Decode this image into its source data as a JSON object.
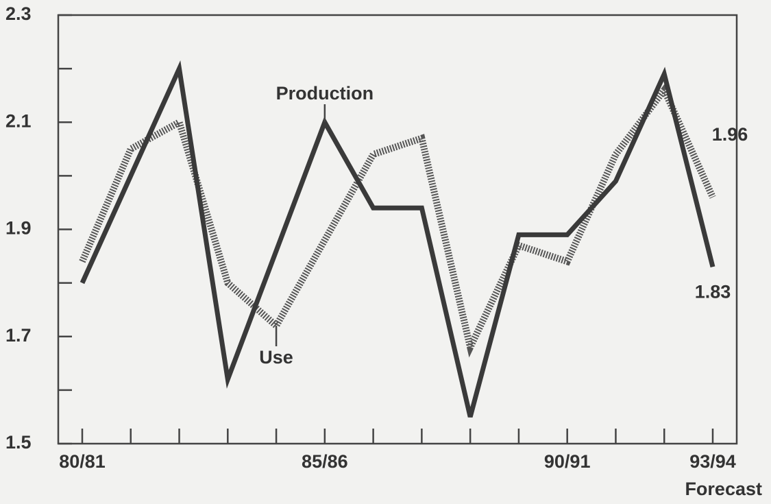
{
  "chart_data": {
    "type": "line",
    "categories": [
      "80/81",
      null,
      null,
      null,
      null,
      "85/86",
      null,
      null,
      null,
      null,
      "90/91",
      null,
      null,
      "93/94"
    ],
    "x_note": "Forecast",
    "series": [
      {
        "name": "Production",
        "color": "#3a3a3a",
        "style": "solid",
        "values": [
          1.8,
          2.0,
          2.2,
          1.62,
          1.86,
          2.1,
          1.94,
          1.94,
          1.55,
          1.89,
          1.89,
          1.99,
          2.19,
          1.83
        ]
      },
      {
        "name": "Use",
        "color": "#555555",
        "style": "hatched",
        "values": [
          1.84,
          2.05,
          2.1,
          1.8,
          1.72,
          1.88,
          2.04,
          2.07,
          1.68,
          1.87,
          1.84,
          2.04,
          2.16,
          1.96
        ]
      }
    ],
    "ylim": [
      1.5,
      2.3
    ],
    "yticks": [
      1.5,
      1.7,
      1.9,
      2.1,
      2.3
    ],
    "yticks_minor": [
      1.6,
      1.8,
      2.0,
      2.2
    ],
    "grid": false
  }
}
